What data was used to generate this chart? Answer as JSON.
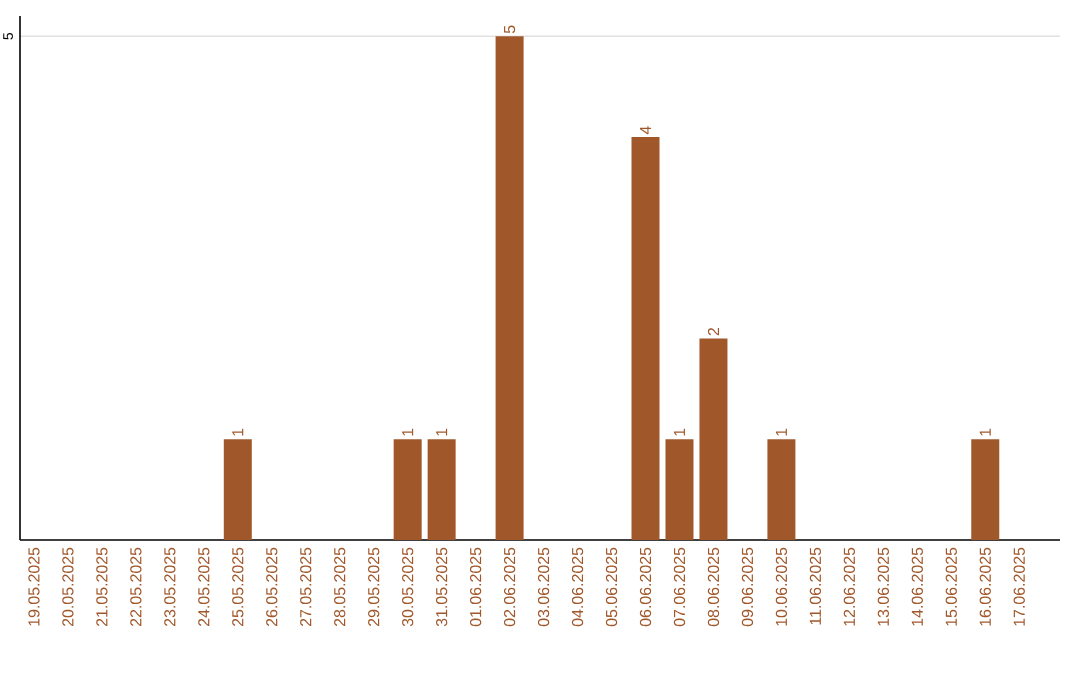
{
  "chart_data": {
    "type": "bar",
    "categories": [
      "19.05.2025",
      "20.05.2025",
      "21.05.2025",
      "22.05.2025",
      "23.05.2025",
      "24.05.2025",
      "25.05.2025",
      "26.05.2025",
      "27.05.2025",
      "28.05.2025",
      "29.05.2025",
      "30.05.2025",
      "31.05.2025",
      "01.06.2025",
      "02.06.2025",
      "03.06.2025",
      "04.06.2025",
      "05.06.2025",
      "06.06.2025",
      "07.06.2025",
      "08.06.2025",
      "09.06.2025",
      "10.06.2025",
      "11.06.2025",
      "12.06.2025",
      "13.06.2025",
      "14.06.2025",
      "15.06.2025",
      "16.06.2025",
      "17.06.2025"
    ],
    "values": [
      0,
      0,
      0,
      0,
      0,
      0,
      1,
      0,
      0,
      0,
      0,
      1,
      1,
      0,
      5,
      0,
      0,
      0,
      4,
      1,
      2,
      0,
      1,
      0,
      0,
      0,
      0,
      0,
      1,
      0
    ],
    "value_labels": [
      null,
      null,
      null,
      null,
      null,
      null,
      "1",
      null,
      null,
      null,
      null,
      "1",
      "1",
      null,
      "5",
      null,
      null,
      null,
      "4",
      "1",
      "2",
      null,
      "1",
      null,
      null,
      null,
      null,
      null,
      "1",
      null
    ],
    "color": "#a0572a",
    "ylim": [
      0,
      5.2
    ],
    "yticks": [
      5
    ],
    "grid": "y"
  }
}
